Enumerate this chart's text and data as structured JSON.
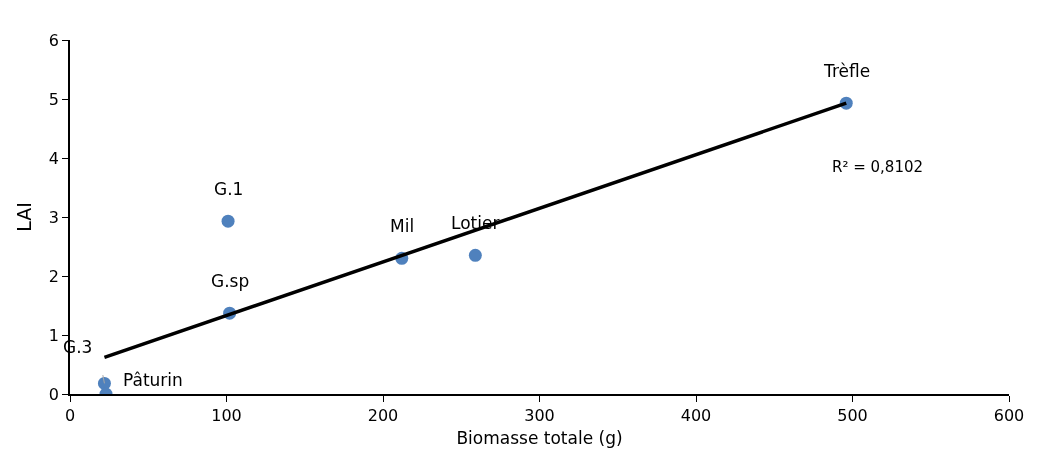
{
  "chart_data": {
    "type": "scatter",
    "xlabel": "Biomasse totale (g)",
    "ylabel": "LAI",
    "xlim": [
      0,
      600
    ],
    "xticks": [
      0,
      100,
      200,
      300,
      400,
      500,
      600
    ],
    "ylim": [
      0,
      6
    ],
    "yticks": [
      0,
      1,
      2,
      3,
      4,
      5,
      6
    ],
    "marker": "circle",
    "series": [
      {
        "color": "#4f81bd",
        "x": [
          22,
          23,
          101,
          102,
          212,
          259,
          496
        ],
        "values": [
          0.18,
          0,
          2.93,
          1.37,
          2.3,
          2.35,
          4.93
        ]
      },
      {
        "type": "line",
        "color": "#000000",
        "marker": "none",
        "line_style": "solid",
        "x": [
          22,
          496
        ],
        "values": [
          0.62,
          4.93
        ]
      }
    ],
    "annotations": [
      {
        "text": "G.3",
        "x": 22,
        "y": 0.18
      },
      {
        "text": "Pâturin",
        "x": 23,
        "y": 0
      },
      {
        "text": "G.1",
        "x": 101,
        "y": 2.93
      },
      {
        "text": "G.sp",
        "x": 102,
        "y": 1.37
      },
      {
        "text": "Mil",
        "x": 212,
        "y": 2.3
      },
      {
        "text": "Lotier",
        "x": 259,
        "y": 2.35
      },
      {
        "text": "Trèfle",
        "x": 496,
        "y": 4.93
      },
      "R² = 0,8102"
    ]
  }
}
